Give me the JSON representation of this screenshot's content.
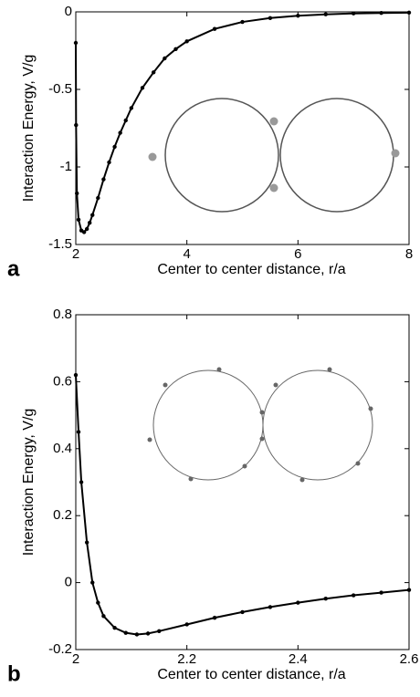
{
  "chart_data": [
    {
      "type": "line",
      "panel_label": "a",
      "xlabel": "Center to center distance, r/a",
      "ylabel": "Interaction Energy, V/g",
      "x": [
        2.0,
        2.005,
        2.02,
        2.05,
        2.1,
        2.15,
        2.2,
        2.25,
        2.3,
        2.4,
        2.5,
        2.6,
        2.7,
        2.8,
        2.9,
        3.0,
        3.2,
        3.4,
        3.6,
        3.8,
        4.0,
        4.5,
        5.0,
        5.5,
        6.0,
        6.5,
        7.0,
        7.5,
        8.0
      ],
      "values": [
        -0.2,
        -0.73,
        -1.17,
        -1.34,
        -1.41,
        -1.42,
        -1.4,
        -1.36,
        -1.31,
        -1.2,
        -1.08,
        -0.97,
        -0.87,
        -0.78,
        -0.7,
        -0.62,
        -0.49,
        -0.39,
        -0.3,
        -0.24,
        -0.19,
        -0.11,
        -0.065,
        -0.04,
        -0.025,
        -0.016,
        -0.01,
        -0.007,
        -0.005
      ],
      "color": "#000000",
      "xlim": [
        2,
        8
      ],
      "xticks": [
        2,
        4,
        6,
        8
      ],
      "ylim": [
        -1.5,
        0
      ],
      "yticks": [
        -1.5,
        -1,
        -0.5,
        0
      ]
    },
    {
      "type": "line",
      "panel_label": "b",
      "xlabel": "Center to center distance, r/a",
      "ylabel": "Interaction Energy, V/g",
      "x": [
        2.0,
        2.005,
        2.01,
        2.02,
        2.03,
        2.04,
        2.05,
        2.07,
        2.09,
        2.11,
        2.13,
        2.15,
        2.2,
        2.25,
        2.3,
        2.35,
        2.4,
        2.45,
        2.5,
        2.55,
        2.6
      ],
      "values": [
        0.62,
        0.45,
        0.3,
        0.12,
        0.0,
        -0.06,
        -0.1,
        -0.135,
        -0.15,
        -0.155,
        -0.152,
        -0.145,
        -0.125,
        -0.105,
        -0.088,
        -0.073,
        -0.06,
        -0.048,
        -0.038,
        -0.03,
        -0.022
      ],
      "color": "#000000",
      "xlim": [
        2,
        2.6
      ],
      "xticks": [
        2,
        2.2,
        2.4,
        2.6
      ],
      "ylim": [
        -0.2,
        0.8
      ],
      "yticks": [
        -0.2,
        0,
        0.2,
        0.4,
        0.6,
        0.8
      ]
    }
  ]
}
